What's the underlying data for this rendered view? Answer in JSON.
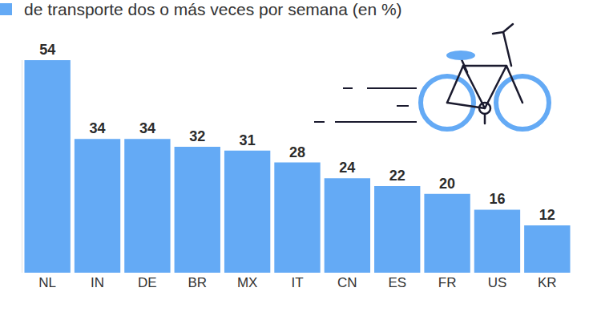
{
  "chart_data": {
    "type": "bar",
    "title": "de transporte dos o más veces por semana (en %)",
    "categories": [
      "NL",
      "IN",
      "DE",
      "BR",
      "MX",
      "IT",
      "CN",
      "ES",
      "FR",
      "US",
      "KR"
    ],
    "values": [
      54,
      34,
      34,
      32,
      31,
      28,
      24,
      22,
      20,
      16,
      12
    ],
    "color": "#64aaf5",
    "ylim": [
      0,
      54
    ],
    "grid": false,
    "data_labels": true,
    "tick_labels": "x"
  }
}
